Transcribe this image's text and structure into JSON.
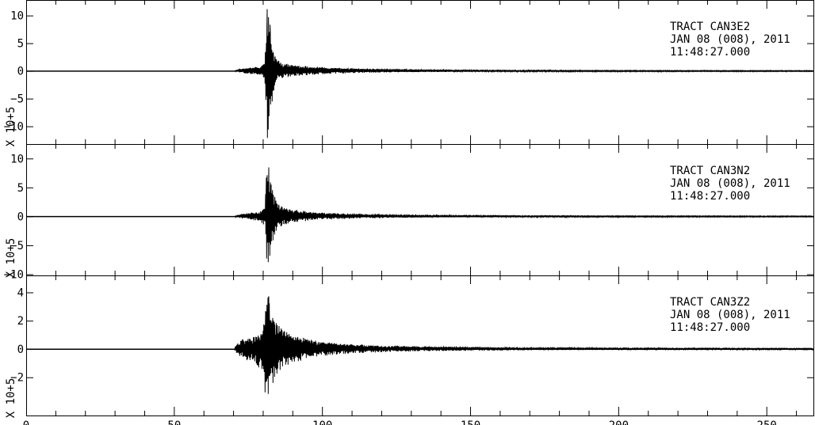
{
  "chart_data": [
    {
      "type": "line",
      "station_text": "TRACT   CAN3E2",
      "date_text": "JAN 08 (008), 2011",
      "time_text": "11:48:27.000",
      "scale_text": "X 10+5",
      "xlim": [
        0,
        266
      ],
      "ylim": [
        -13.2,
        12.8
      ],
      "xticks": [
        0,
        50,
        100,
        150,
        200,
        250
      ],
      "yticks": [
        10,
        5,
        0,
        -5,
        -10
      ],
      "ytick_labels": [
        "10",
        "5",
        "0",
        "−5",
        "−10"
      ],
      "envelope": [
        [
          0,
          0
        ],
        [
          70,
          0
        ],
        [
          71.5,
          0.2
        ],
        [
          73,
          0.4
        ],
        [
          76,
          0.6
        ],
        [
          79,
          0.7
        ],
        [
          80.6,
          1.5
        ],
        [
          81.3,
          12.0
        ],
        [
          82.2,
          9.0
        ],
        [
          83.5,
          4.0
        ],
        [
          85,
          2.0
        ],
        [
          87,
          1.4
        ],
        [
          90,
          1.0
        ],
        [
          95,
          0.8
        ],
        [
          100,
          0.6
        ],
        [
          110,
          0.4
        ],
        [
          120,
          0.28
        ],
        [
          135,
          0.2
        ],
        [
          160,
          0.14
        ],
        [
          200,
          0.1
        ],
        [
          266,
          0.08
        ]
      ],
      "envelope_neg": [
        [
          0,
          0
        ],
        [
          70,
          0
        ],
        [
          71.5,
          -0.2
        ],
        [
          73,
          -0.4
        ],
        [
          76,
          -0.6
        ],
        [
          79,
          -0.7
        ],
        [
          80.6,
          -2.0
        ],
        [
          81.3,
          -12.8
        ],
        [
          82.2,
          -9.0
        ],
        [
          83.5,
          -4.0
        ],
        [
          85,
          -2.0
        ],
        [
          87,
          -1.4
        ],
        [
          90,
          -1.0
        ],
        [
          95,
          -0.8
        ],
        [
          100,
          -0.6
        ],
        [
          110,
          -0.4
        ],
        [
          120,
          -0.28
        ],
        [
          135,
          -0.2
        ],
        [
          160,
          -0.14
        ],
        [
          200,
          -0.1
        ],
        [
          266,
          -0.08
        ]
      ]
    },
    {
      "type": "line",
      "station_text": "TRACT   CAN3N2",
      "date_text": "JAN 08 (008), 2011",
      "time_text": "11:48:27.000",
      "scale_text": "X 10+5",
      "xlim": [
        0,
        266
      ],
      "ylim": [
        -10.2,
        12.5
      ],
      "xticks": [
        0,
        50,
        100,
        150,
        200,
        250
      ],
      "yticks": [
        10,
        5,
        0,
        -5,
        -10
      ],
      "ytick_labels": [
        "10",
        "5",
        "0",
        "−5",
        "−10"
      ],
      "envelope": [
        [
          0,
          0
        ],
        [
          70,
          0
        ],
        [
          71.5,
          0.2
        ],
        [
          73,
          0.4
        ],
        [
          76,
          0.6
        ],
        [
          79,
          0.8
        ],
        [
          80.6,
          1.6
        ],
        [
          81.3,
          11.2
        ],
        [
          82.2,
          8.0
        ],
        [
          83.5,
          4.0
        ],
        [
          85,
          2.2
        ],
        [
          87,
          1.5
        ],
        [
          90,
          1.1
        ],
        [
          95,
          0.8
        ],
        [
          100,
          0.6
        ],
        [
          110,
          0.4
        ],
        [
          120,
          0.28
        ],
        [
          135,
          0.2
        ],
        [
          160,
          0.14
        ],
        [
          200,
          0.1
        ],
        [
          266,
          0.08
        ]
      ],
      "envelope_neg": [
        [
          0,
          0
        ],
        [
          70,
          0
        ],
        [
          71.5,
          -0.2
        ],
        [
          73,
          -0.4
        ],
        [
          76,
          -0.6
        ],
        [
          79,
          -0.8
        ],
        [
          80.6,
          -2.0
        ],
        [
          81.3,
          -9.9
        ],
        [
          82.2,
          -7.5
        ],
        [
          83.5,
          -4.0
        ],
        [
          85,
          -2.2
        ],
        [
          87,
          -1.5
        ],
        [
          90,
          -1.1
        ],
        [
          95,
          -0.8
        ],
        [
          100,
          -0.6
        ],
        [
          110,
          -0.4
        ],
        [
          120,
          -0.28
        ],
        [
          135,
          -0.2
        ],
        [
          160,
          -0.14
        ],
        [
          200,
          -0.1
        ],
        [
          266,
          -0.08
        ]
      ]
    },
    {
      "type": "line",
      "station_text": "TRACT   CAN3Z2",
      "date_text": "JAN 08 (008), 2011",
      "time_text": "11:48:27.000",
      "scale_text": "X 10+5",
      "xlim": [
        0,
        266
      ],
      "ylim": [
        -4.7,
        5.2
      ],
      "xticks": [
        0,
        50,
        100,
        150,
        200,
        250
      ],
      "yticks": [
        4,
        2,
        0,
        -2
      ],
      "ytick_labels": [
        "4",
        "2",
        "0",
        "−2"
      ],
      "xtick_labels": [
        "0",
        "50",
        "100",
        "150",
        "200",
        "250"
      ],
      "envelope": [
        [
          0,
          0
        ],
        [
          70,
          0
        ],
        [
          71.5,
          0.4
        ],
        [
          73,
          0.7
        ],
        [
          76,
          0.8
        ],
        [
          79,
          1.0
        ],
        [
          80.6,
          2.0
        ],
        [
          81.3,
          4.9
        ],
        [
          82.2,
          3.2
        ],
        [
          83.5,
          2.3
        ],
        [
          85,
          1.7
        ],
        [
          87,
          1.3
        ],
        [
          90,
          1.0
        ],
        [
          95,
          0.7
        ],
        [
          100,
          0.5
        ],
        [
          110,
          0.32
        ],
        [
          120,
          0.22
        ],
        [
          135,
          0.16
        ],
        [
          160,
          0.1
        ],
        [
          200,
          0.07
        ],
        [
          266,
          0.05
        ]
      ],
      "envelope_neg": [
        [
          0,
          0
        ],
        [
          70,
          0
        ],
        [
          71.5,
          -0.4
        ],
        [
          73,
          -0.7
        ],
        [
          76,
          -0.9
        ],
        [
          79,
          -1.4
        ],
        [
          80.6,
          -3.0
        ],
        [
          81.3,
          -4.4
        ],
        [
          82.2,
          -3.5
        ],
        [
          83.5,
          -2.4
        ],
        [
          85,
          -1.7
        ],
        [
          87,
          -1.3
        ],
        [
          90,
          -1.0
        ],
        [
          95,
          -0.7
        ],
        [
          100,
          -0.5
        ],
        [
          110,
          -0.32
        ],
        [
          120,
          -0.22
        ],
        [
          135,
          -0.16
        ],
        [
          160,
          -0.1
        ],
        [
          200,
          -0.07
        ],
        [
          266,
          -0.05
        ]
      ]
    }
  ]
}
